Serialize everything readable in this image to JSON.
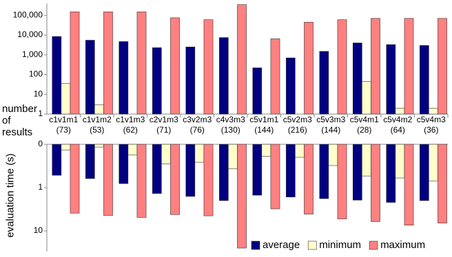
{
  "chart_data": [
    {
      "type": "bar",
      "log_scale": true,
      "y_reversed": false,
      "y_label": "number of results",
      "categories": [
        "c1v1m1",
        "c1v1m2",
        "c1v1m3",
        "c2v1m3",
        "c3v2m3",
        "c4v3m3",
        "c5v1m1",
        "c5v2m3",
        "c5v3m3",
        "c5v4m1",
        "c5v4m2",
        "c5v4m3"
      ],
      "category_counts": [
        "(73)",
        "(53)",
        "(62)",
        "(71)",
        "(76)",
        "(130)",
        "(144)",
        "(216)",
        "(144)",
        "(28)",
        "(64)",
        "(36)"
      ],
      "ylim": [
        1,
        400000
      ],
      "yticks": [
        1,
        10,
        100,
        {
          "value": 1000,
          "label": "1,000"
        },
        {
          "value": 10000,
          "label": "10,000"
        },
        {
          "value": 100000,
          "label": "100,000"
        }
      ],
      "series": [
        {
          "color": "#000080",
          "values": [
            8500,
            5500,
            4700,
            2300,
            2500,
            7500,
            220,
            700,
            1500,
            4000,
            3300,
            3000
          ]
        },
        {
          "color": "#ffffcc",
          "values": [
            35,
            3,
            1,
            1,
            1,
            1,
            1,
            1,
            1,
            45,
            2,
            2
          ]
        },
        {
          "color": "#ff8080",
          "values": [
            150000,
            150000,
            150000,
            75000,
            60000,
            350000,
            6500,
            45000,
            60000,
            70000,
            70000,
            70000
          ]
        }
      ]
    },
    {
      "type": "bar",
      "log_scale": true,
      "y_reversed": true,
      "y_label": "evaluation time (s)",
      "legend": "bottom-right",
      "ylim": [
        0.1,
        30
      ],
      "yticks": [
        {
          "value": 0.1,
          "label": "0"
        },
        1,
        10
      ],
      "series": [
        {
          "name": "average",
          "color": "#000080",
          "values": [
            0.52,
            0.62,
            0.81,
            1.37,
            1.6,
            2.0,
            1.5,
            1.65,
            1.8,
            1.95,
            2.2,
            2.0
          ]
        },
        {
          "name": "minimum",
          "color": "#ffffcc",
          "values": [
            0.135,
            0.116,
            0.175,
            0.285,
            0.26,
            0.37,
            0.19,
            0.2,
            0.31,
            0.54,
            0.6,
            0.7
          ]
        },
        {
          "name": "maximum",
          "color": "#ff8080",
          "values": [
            3.9,
            4.4,
            4.9,
            4.2,
            4.5,
            25,
            3.1,
            4.1,
            5.3,
            6.1,
            7.4,
            6.6
          ]
        }
      ]
    }
  ]
}
